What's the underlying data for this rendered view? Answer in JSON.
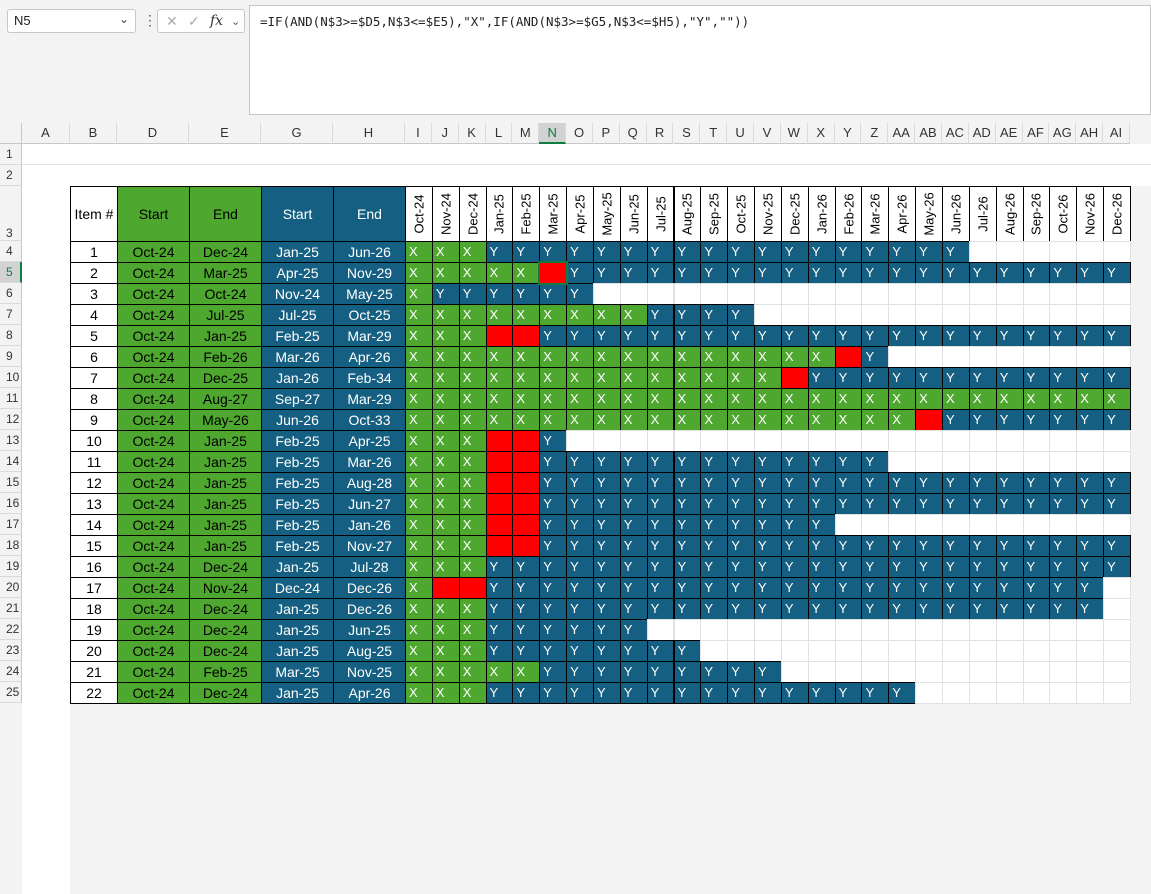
{
  "name_box": {
    "value": "N5",
    "dropdown_icon": "chevron-down-icon"
  },
  "formula_bar": {
    "formula": "=IF(AND(N$3>=$D5,N$3<=$E5),\"X\",IF(AND(N$3>=$G5,N$3<=$H5),\"Y\",\"\"))",
    "cancel_icon": "✕",
    "enter_icon": "✓",
    "fx_label": "fx"
  },
  "colors": {
    "green": "#4ea72e",
    "blue": "#156082",
    "red": "#ff0000",
    "header_bg": "#f3f3f3"
  },
  "columns": [
    "A",
    "B",
    "D",
    "E",
    "G",
    "H",
    "I",
    "J",
    "K",
    "L",
    "M",
    "N",
    "O",
    "P",
    "Q",
    "R",
    "S",
    "T",
    "U",
    "V",
    "W",
    "X",
    "Y",
    "Z",
    "AA",
    "AB",
    "AC",
    "AD",
    "AE",
    "AF",
    "AG",
    "AH",
    "AI"
  ],
  "row_numbers": [
    "1",
    "2",
    "3",
    "4",
    "5",
    "6",
    "7",
    "8",
    "9",
    "10",
    "11",
    "12",
    "13",
    "14",
    "15",
    "16",
    "17",
    "18",
    "19",
    "20",
    "21",
    "22",
    "23",
    "24",
    "25"
  ],
  "table_headers": {
    "item": "Item #",
    "start1": "Start",
    "end1": "End",
    "start2": "Start",
    "end2": "End"
  },
  "months": [
    "Oct-24",
    "Nov-24",
    "Dec-24",
    "Jan-25",
    "Feb-25",
    "Mar-25",
    "Apr-25",
    "May-25",
    "Jun-25",
    "Jul-25",
    "Aug-25",
    "Sep-25",
    "Oct-25",
    "Nov-25",
    "Dec-25",
    "Jan-26",
    "Feb-26",
    "Mar-26",
    "Apr-26",
    "May-26",
    "Jun-26",
    "Jul-26",
    "Aug-26",
    "Sep-26",
    "Oct-26",
    "Nov-26",
    "Dec-26"
  ],
  "rows": [
    {
      "item": "1",
      "start1": "Oct-24",
      "end1": "Dec-24",
      "start2": "Jan-25",
      "end2": "Jun-26",
      "cells": "XXXYYYYYYYYYYYYYYYYYY......",
      "red": []
    },
    {
      "item": "2",
      "start1": "Oct-24",
      "end1": "Mar-25",
      "start2": "Apr-25",
      "end2": "Nov-29",
      "cells": "XXXXX.YYYYYYYYYYYYYYYYYYYYY",
      "red": [
        5
      ]
    },
    {
      "item": "3",
      "start1": "Oct-24",
      "end1": "Oct-24",
      "start2": "Nov-24",
      "end2": "May-25",
      "cells": "XYYYYYY....................",
      "red": []
    },
    {
      "item": "4",
      "start1": "Oct-24",
      "end1": "Jul-25",
      "start2": "Jul-25",
      "end2": "Oct-25",
      "cells": "XXXXXXXXXYYYY..............",
      "red": []
    },
    {
      "item": "5",
      "start1": "Oct-24",
      "end1": "Jan-25",
      "start2": "Feb-25",
      "end2": "Mar-29",
      "cells": "XXX..YYYYYYYYYYYYYYYYYYYYYY",
      "red": [
        3,
        4
      ]
    },
    {
      "item": "6",
      "start1": "Oct-24",
      "end1": "Feb-26",
      "start2": "Mar-26",
      "end2": "Apr-26",
      "cells": "XXXXXXXXXXXXXXXX.Y.........",
      "red": [
        16
      ]
    },
    {
      "item": "7",
      "start1": "Oct-24",
      "end1": "Dec-25",
      "start2": "Jan-26",
      "end2": "Feb-34",
      "cells": "XXXXXXXXXXXXXX.YYYYYYYYYYYY",
      "red": [
        14
      ]
    },
    {
      "item": "8",
      "start1": "Oct-24",
      "end1": "Aug-27",
      "start2": "Sep-27",
      "end2": "Mar-29",
      "cells": "XXXXXXXXXXXXXXXXXXXXXXXXXXX",
      "red": []
    },
    {
      "item": "9",
      "start1": "Oct-24",
      "end1": "May-26",
      "start2": "Jun-26",
      "end2": "Oct-33",
      "cells": "XXXXXXXXXXXXXXXXXXX.YYYYYYY",
      "red": [
        19
      ]
    },
    {
      "item": "10",
      "start1": "Oct-24",
      "end1": "Jan-25",
      "start2": "Feb-25",
      "end2": "Apr-25",
      "cells": "XXX..Y.....................",
      "red": [
        3,
        4
      ]
    },
    {
      "item": "11",
      "start1": "Oct-24",
      "end1": "Jan-25",
      "start2": "Feb-25",
      "end2": "Mar-26",
      "cells": "XXX..YYYYYYYYYYYYY.........",
      "red": [
        3,
        4
      ]
    },
    {
      "item": "12",
      "start1": "Oct-24",
      "end1": "Jan-25",
      "start2": "Feb-25",
      "end2": "Aug-28",
      "cells": "XXX..YYYYYYYYYYYYYYYYYYYYYY",
      "red": [
        3,
        4
      ]
    },
    {
      "item": "13",
      "start1": "Oct-24",
      "end1": "Jan-25",
      "start2": "Feb-25",
      "end2": "Jun-27",
      "cells": "XXX..YYYYYYYYYYYYYYYYYYYYYY",
      "red": [
        3,
        4
      ]
    },
    {
      "item": "14",
      "start1": "Oct-24",
      "end1": "Jan-25",
      "start2": "Feb-25",
      "end2": "Jan-26",
      "cells": "XXX..YYYYYYYYYYY...........",
      "red": [
        3,
        4
      ]
    },
    {
      "item": "15",
      "start1": "Oct-24",
      "end1": "Jan-25",
      "start2": "Feb-25",
      "end2": "Nov-27",
      "cells": "XXX..YYYYYYYYYYYYYYYYYYYYYY",
      "red": [
        3,
        4
      ]
    },
    {
      "item": "16",
      "start1": "Oct-24",
      "end1": "Dec-24",
      "start2": "Jan-25",
      "end2": "Jul-28",
      "cells": "XXXYYYYYYYYYYYYYYYYYYYYYYYY",
      "red": []
    },
    {
      "item": "17",
      "start1": "Oct-24",
      "end1": "Nov-24",
      "start2": "Dec-24",
      "end2": "Dec-26",
      "cells": "X..YYYYYYYYYYYYYYYYYYYYYYY.",
      "red": [
        1,
        2
      ]
    },
    {
      "item": "18",
      "start1": "Oct-24",
      "end1": "Dec-24",
      "start2": "Jan-25",
      "end2": "Dec-26",
      "cells": "XXXYYYYYYYYYYYYYYYYYYYYYYY.",
      "red": []
    },
    {
      "item": "19",
      "start1": "Oct-24",
      "end1": "Dec-24",
      "start2": "Jan-25",
      "end2": "Jun-25",
      "cells": "XXXYYYYYY..................",
      "red": []
    },
    {
      "item": "20",
      "start1": "Oct-24",
      "end1": "Dec-24",
      "start2": "Jan-25",
      "end2": "Aug-25",
      "cells": "XXXYYYYYYYY................",
      "red": []
    },
    {
      "item": "21",
      "start1": "Oct-24",
      "end1": "Feb-25",
      "start2": "Mar-25",
      "end2": "Nov-25",
      "cells": "XXXXXYYYYYYYYY.............",
      "red": []
    },
    {
      "item": "22",
      "start1": "Oct-24",
      "end1": "Dec-24",
      "start2": "Jan-25",
      "end2": "Apr-26",
      "cells": "XXXYYYYYYYYYYYYYYYY........",
      "red": []
    }
  ]
}
